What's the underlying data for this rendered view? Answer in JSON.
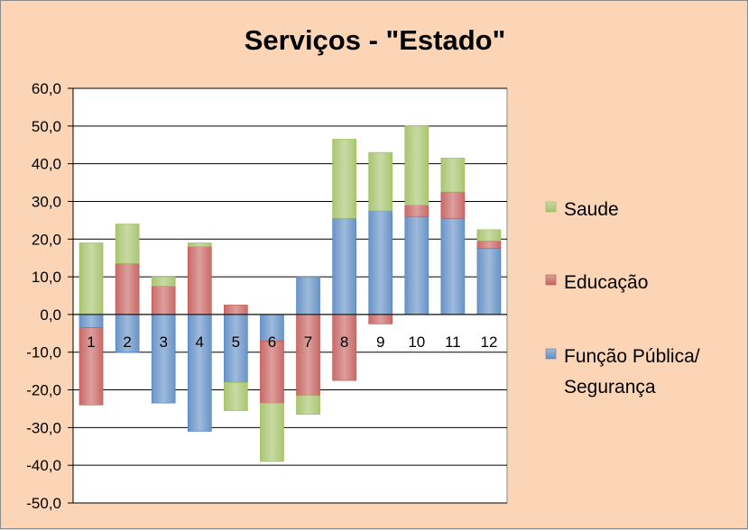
{
  "chart_data": {
    "type": "bar",
    "stacked": true,
    "title": "Serviços - \"Estado\"",
    "categories": [
      "1",
      "2",
      "3",
      "4",
      "5",
      "6",
      "7",
      "8",
      "9",
      "10",
      "11",
      "12"
    ],
    "series": [
      {
        "name": "Função Pública/ Segurança",
        "color": "#4f81bd",
        "values": [
          -3.5,
          -10,
          -23.5,
          -31,
          -18,
          -7,
          10,
          25.5,
          27.5,
          26,
          25.5,
          17.5
        ]
      },
      {
        "name": "Educação",
        "color": "#c0504d",
        "values": [
          -20.5,
          13.5,
          7.5,
          18,
          2.5,
          -16.5,
          -21.5,
          -17.5,
          -2.5,
          3,
          7,
          2
        ]
      },
      {
        "name": "Saude",
        "color": "#9bbb59",
        "values": [
          19,
          10.5,
          2.5,
          1,
          -7.5,
          -15.5,
          -5,
          21,
          15.5,
          21,
          9,
          3
        ]
      }
    ],
    "ylim": [
      -50,
      60
    ],
    "yticks": [
      "60,0",
      "50,0",
      "40,0",
      "30,0",
      "20,0",
      "10,0",
      "0,0",
      "-10,0",
      "-20,0",
      "-30,0",
      "-40,0",
      "-50,0"
    ],
    "ytick_values": [
      60,
      50,
      40,
      30,
      20,
      10,
      0,
      -10,
      -20,
      -30,
      -40,
      -50
    ],
    "grid": true,
    "legend": {
      "placement": "right",
      "entries": [
        {
          "label": "Saude",
          "color": "#9bbb59"
        },
        {
          "label": "Educação",
          "color": "#c0504d"
        },
        {
          "label": "Função Pública/",
          "label2": "Segurança",
          "color": "#4f81bd"
        }
      ]
    },
    "background": "#fbd5b5",
    "plot_background": "#ffffff"
  }
}
